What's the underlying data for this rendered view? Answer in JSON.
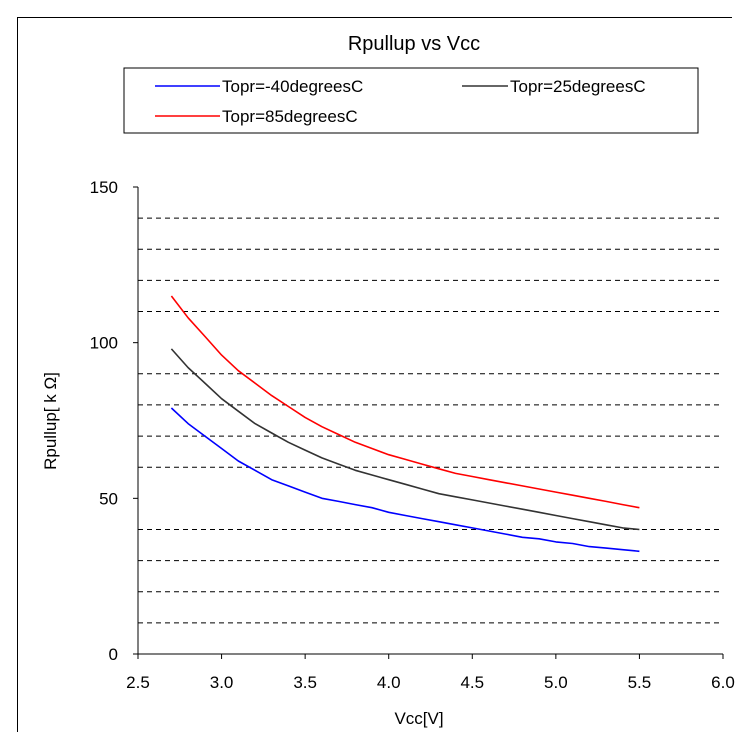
{
  "chart_data": {
    "type": "line",
    "title": "Rpullup vs Vcc",
    "xlabel": "Vcc[V]",
    "ylabel": "Rpullup[ k Ω]",
    "xlim": [
      2.5,
      6.0
    ],
    "ylim": [
      0,
      150
    ],
    "xticks": [
      "2.5",
      "3.0",
      "3.5",
      "4.0",
      "4.5",
      "5.0",
      "5.5",
      "6.0"
    ],
    "yticks": [
      "0",
      "50",
      "100",
      "150"
    ],
    "grid": "horizontal dashed every 10",
    "legend_position": "top",
    "series": [
      {
        "name": "Topr=-40degreesC",
        "color": "#0000ff",
        "x": [
          2.7,
          2.8,
          2.9,
          3.0,
          3.1,
          3.2,
          3.3,
          3.4,
          3.5,
          3.6,
          3.7,
          3.8,
          3.9,
          4.0,
          4.1,
          4.2,
          4.3,
          4.4,
          4.5,
          4.6,
          4.7,
          4.8,
          4.9,
          5.0,
          5.1,
          5.2,
          5.3,
          5.4,
          5.5
        ],
        "y": [
          79,
          74,
          70,
          66,
          62,
          59,
          56,
          54,
          52,
          50,
          49,
          48,
          47,
          45.5,
          44.5,
          43.5,
          42.5,
          41.5,
          40.5,
          39.5,
          38.5,
          37.5,
          37,
          36,
          35.5,
          34.5,
          34,
          33.5,
          33
        ]
      },
      {
        "name": "Topr=25degreesC",
        "color": "#333333",
        "x": [
          2.7,
          2.8,
          2.9,
          3.0,
          3.1,
          3.2,
          3.3,
          3.4,
          3.5,
          3.6,
          3.7,
          3.8,
          3.9,
          4.0,
          4.1,
          4.2,
          4.3,
          4.4,
          4.5,
          4.6,
          4.7,
          4.8,
          4.9,
          5.0,
          5.1,
          5.2,
          5.3,
          5.4,
          5.5
        ],
        "y": [
          98,
          92,
          87,
          82,
          78,
          74,
          71,
          68,
          65.5,
          63,
          61,
          59,
          57.5,
          56,
          54.5,
          53,
          51.5,
          50.5,
          49.5,
          48.5,
          47.5,
          46.5,
          45.5,
          44.5,
          43.5,
          42.5,
          41.5,
          40.5,
          40
        ]
      },
      {
        "name": "Topr=85degreesC",
        "color": "#ff0000",
        "x": [
          2.7,
          2.8,
          2.9,
          3.0,
          3.1,
          3.2,
          3.3,
          3.4,
          3.5,
          3.6,
          3.7,
          3.8,
          3.9,
          4.0,
          4.1,
          4.2,
          4.3,
          4.4,
          4.5,
          4.6,
          4.7,
          4.8,
          4.9,
          5.0,
          5.1,
          5.2,
          5.3,
          5.4,
          5.5
        ],
        "y": [
          115,
          108,
          102,
          96,
          91,
          87,
          83,
          79.5,
          76,
          73,
          70.5,
          68,
          66,
          64,
          62.5,
          61,
          59.5,
          58,
          57,
          56,
          55,
          54,
          53,
          52,
          51,
          50,
          49,
          48,
          47
        ]
      }
    ]
  }
}
